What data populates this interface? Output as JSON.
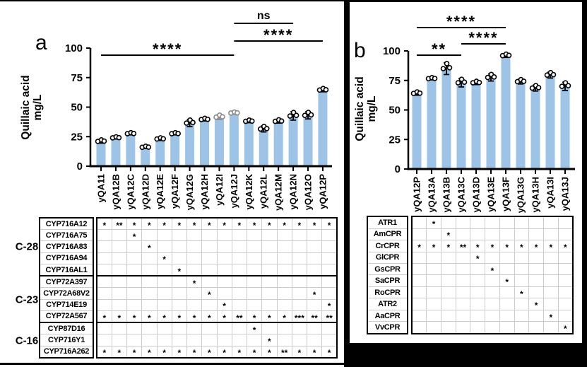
{
  "figure": {
    "panel_a_label": "a",
    "panel_b_label": "b",
    "bar_color": "#9DC3E6",
    "gray_point_color": "#8a8a8a"
  },
  "chart_data": [
    {
      "type": "bar",
      "panel": "a",
      "ylabel": "Quillaic acid mg/L",
      "ylabel_lines": [
        "Quillaic acid",
        "mg/L"
      ],
      "ylim": [
        0,
        100
      ],
      "yticks": [
        0,
        25,
        50,
        75,
        100
      ],
      "bar_color": "#9DC3E6",
      "categories": [
        "yQA11",
        "yQA12B",
        "yQA12C",
        "yQA12D",
        "yQA12E",
        "yQA12F",
        "yQA12G",
        "yQA12H",
        "yQA12I",
        "yQA12J",
        "yQA12K",
        "yQA12L",
        "yQA12M",
        "yQA12N",
        "yQA12O",
        "yQA12P"
      ],
      "values": [
        21,
        24,
        27.5,
        16,
        23,
        27.5,
        36.5,
        39.5,
        41.5,
        45,
        38,
        31.5,
        38,
        42.5,
        43,
        64.5
      ],
      "errors": [
        1.5,
        1,
        1,
        1,
        1.2,
        1,
        3,
        1.2,
        2,
        1,
        1.2,
        2.5,
        1.5,
        3.5,
        3,
        1.5
      ],
      "gray_point_categories": [
        "yQA12I",
        "yQA12J"
      ],
      "significance": [
        {
          "label": "****",
          "from": "yQA11",
          "to": "yQA12J"
        },
        {
          "label": "ns",
          "from": "yQA12J",
          "to": "yQA12N"
        },
        {
          "label": "****",
          "from": "yQA12J",
          "to": "yQA12P"
        }
      ]
    },
    {
      "type": "bar",
      "panel": "b",
      "ylabel": "Quillaic acid mg/L",
      "ylabel_lines": [
        "Quillaic acid",
        "mg/L"
      ],
      "ylim": [
        0,
        100
      ],
      "yticks": [
        0,
        25,
        50,
        75,
        100
      ],
      "bar_color": "#9DC3E6",
      "categories": [
        "yQA12P",
        "yQA13A",
        "yQA13B",
        "yQA13C",
        "yQA13D",
        "yQA13E",
        "yQA13F",
        "yQA13G",
        "yQA13H",
        "yQA13I",
        "yQA13J"
      ],
      "values": [
        64,
        76.5,
        85,
        73,
        73,
        77.5,
        96,
        74,
        68.5,
        79.5,
        70
      ],
      "errors": [
        1.5,
        1,
        5,
        3.5,
        1.5,
        3,
        1.5,
        2,
        2.5,
        2.5,
        3.5
      ],
      "gray_point_categories": [],
      "significance": [
        {
          "label": "**",
          "from": "yQA12P",
          "to": "yQA13C"
        },
        {
          "label": "****",
          "from": "yQA12P",
          "to": "yQA13F"
        },
        {
          "label": "****",
          "from": "yQA13C",
          "to": "yQA13F"
        }
      ]
    }
  ],
  "table_a": {
    "groups": [
      {
        "label": "C-28",
        "size": 5
      },
      {
        "label": "C-23",
        "size": 4
      },
      {
        "label": "C-16",
        "size": 3
      }
    ],
    "columns": [
      "yQA11",
      "yQA12B",
      "yQA12C",
      "yQA12D",
      "yQA12E",
      "yQA12F",
      "yQA12G",
      "yQA12H",
      "yQA12I",
      "yQA12J",
      "yQA12K",
      "yQA12L",
      "yQA12M",
      "yQA12N",
      "yQA12O",
      "yQA12P"
    ],
    "rows": [
      {
        "name": "CYP716A12",
        "marks": [
          "*",
          "**",
          "*",
          "*",
          "*",
          "*",
          "*",
          "*",
          "*",
          "*",
          "*",
          "*",
          "*",
          "*",
          "*",
          "*"
        ]
      },
      {
        "name": "CYP716A75",
        "marks": [
          "",
          "",
          "*",
          "",
          "",
          "",
          "",
          "",
          "",
          "",
          "",
          "",
          "",
          "",
          "",
          ""
        ]
      },
      {
        "name": "CYP716A83",
        "marks": [
          "",
          "",
          "",
          "*",
          "",
          "",
          "",
          "",
          "",
          "",
          "",
          "",
          "",
          "",
          "",
          ""
        ]
      },
      {
        "name": "CYP716A94",
        "marks": [
          "",
          "",
          "",
          "",
          "*",
          "",
          "",
          "",
          "",
          "",
          "",
          "",
          "",
          "",
          "",
          ""
        ]
      },
      {
        "name": "CYP716AL1",
        "marks": [
          "",
          "",
          "",
          "",
          "",
          "*",
          "",
          "",
          "",
          "",
          "",
          "",
          "",
          "",
          "",
          ""
        ]
      },
      {
        "name": "CYP72A397",
        "marks": [
          "",
          "",
          "",
          "",
          "",
          "",
          "*",
          "",
          "",
          "",
          "",
          "",
          "",
          "",
          "",
          ""
        ]
      },
      {
        "name": "CYP72A68V2",
        "marks": [
          "",
          "",
          "",
          "",
          "",
          "",
          "",
          "*",
          "",
          "",
          "",
          "",
          "",
          "",
          "*",
          ""
        ]
      },
      {
        "name": "CYP714E19",
        "marks": [
          "",
          "",
          "",
          "",
          "",
          "",
          "",
          "",
          "*",
          "",
          "",
          "",
          "",
          "",
          "",
          "*"
        ]
      },
      {
        "name": "CYP72A567",
        "marks": [
          "*",
          "*",
          "*",
          "*",
          "*",
          "*",
          "*",
          "*",
          "*",
          "**",
          "*",
          "*",
          "*",
          "***",
          "**",
          "**"
        ]
      },
      {
        "name": "CYP87D16",
        "marks": [
          "",
          "",
          "",
          "",
          "",
          "",
          "",
          "",
          "",
          "",
          "*",
          "",
          "",
          "",
          "",
          ""
        ]
      },
      {
        "name": "CYP716Y1",
        "marks": [
          "",
          "",
          "",
          "",
          "",
          "",
          "",
          "",
          "",
          "",
          "",
          "*",
          "",
          "",
          "",
          ""
        ]
      },
      {
        "name": "CYP716A262",
        "marks": [
          "*",
          "*",
          "*",
          "*",
          "*",
          "*",
          "*",
          "*",
          "*",
          "*",
          "*",
          "*",
          "**",
          "*",
          "*",
          "*"
        ]
      }
    ]
  },
  "table_b": {
    "groups": [],
    "columns": [
      "yQA12P",
      "yQA13A",
      "yQA13B",
      "yQA13C",
      "yQA13D",
      "yQA13E",
      "yQA13F",
      "yQA13G",
      "yQA13H",
      "yQA13I",
      "yQA13J"
    ],
    "rows": [
      {
        "name": "ATR1",
        "marks": [
          "",
          "*",
          "",
          "",
          "",
          "",
          "",
          "",
          "",
          "",
          ""
        ]
      },
      {
        "name": "AmCPR",
        "marks": [
          "",
          "",
          "*",
          "",
          "",
          "",
          "",
          "",
          "",
          "",
          ""
        ]
      },
      {
        "name": "CrCPR",
        "marks": [
          "*",
          "*",
          "*",
          "**",
          "*",
          "*",
          "*",
          "*",
          "*",
          "*",
          "*"
        ]
      },
      {
        "name": "GlCPR",
        "marks": [
          "",
          "",
          "",
          "",
          "*",
          "",
          "",
          "",
          "",
          "",
          ""
        ]
      },
      {
        "name": "GsCPR",
        "marks": [
          "",
          "",
          "",
          "",
          "",
          "*",
          "",
          "",
          "",
          "",
          ""
        ]
      },
      {
        "name": "SaCPR",
        "marks": [
          "",
          "",
          "",
          "",
          "",
          "",
          "*",
          "",
          "",
          "",
          ""
        ]
      },
      {
        "name": "RoCPR",
        "marks": [
          "",
          "",
          "",
          "",
          "",
          "",
          "",
          "*",
          "",
          "",
          ""
        ]
      },
      {
        "name": "ATR2",
        "marks": [
          "",
          "",
          "",
          "",
          "",
          "",
          "",
          "",
          "*",
          "",
          ""
        ]
      },
      {
        "name": "AaCPR",
        "marks": [
          "",
          "",
          "",
          "",
          "",
          "",
          "",
          "",
          "",
          "*",
          ""
        ]
      },
      {
        "name": "VvCPR",
        "marks": [
          "",
          "",
          "",
          "",
          "",
          "",
          "",
          "",
          "",
          "",
          "*"
        ]
      }
    ]
  }
}
